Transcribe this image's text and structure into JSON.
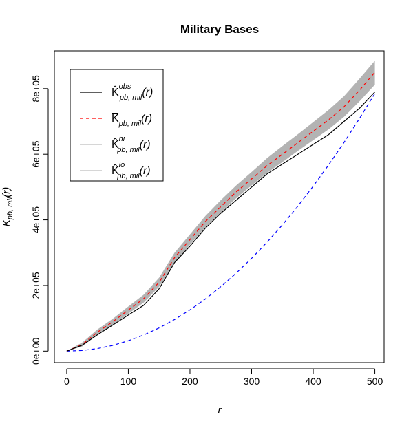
{
  "chart_data": {
    "type": "line",
    "title": "Military Bases",
    "xlabel": "r",
    "ylabel": "K_{pb, mil}(r)",
    "xlim": [
      -20,
      515
    ],
    "ylim": [
      -35000,
      915000
    ],
    "x_ticks": [
      0,
      100,
      200,
      300,
      400,
      500
    ],
    "x_tick_labels": [
      "0",
      "100",
      "200",
      "300",
      "400",
      "500"
    ],
    "y_ticks": [
      0,
      200000,
      400000,
      600000,
      800000
    ],
    "y_tick_labels": [
      "0e+00",
      "2e+05",
      "4e+05",
      "6e+05",
      "8e+05"
    ],
    "grid": false,
    "legend_position": "top-left",
    "legend": [
      {
        "symbol": "K̂",
        "sub": "pb, mil",
        "sup": "obs",
        "arg": "(r)",
        "color": "#000000",
        "dash": "solid"
      },
      {
        "symbol": "K̅",
        "sub": "pb, mil",
        "sup": "",
        "arg": "(r)",
        "color": "#ff0000",
        "dash": "dashed"
      },
      {
        "symbol": "K̂",
        "sub": "pb, mil",
        "sup": "hi",
        "arg": "(r)",
        "color": "#bebebe",
        "dash": "solid"
      },
      {
        "symbol": "K̂",
        "sub": "pb, mil",
        "sup": "lo",
        "arg": "(r)",
        "color": "#bebebe",
        "dash": "solid"
      }
    ],
    "x": [
      0,
      25,
      50,
      75,
      100,
      125,
      150,
      175,
      200,
      225,
      250,
      275,
      300,
      325,
      350,
      375,
      400,
      425,
      450,
      475,
      500
    ],
    "series": [
      {
        "key": "obs",
        "color": "#000000",
        "dash": "solid",
        "values": [
          0,
          18000,
          50000,
          80000,
          110000,
          140000,
          190000,
          270000,
          320000,
          375000,
          420000,
          460000,
          500000,
          540000,
          570000,
          600000,
          630000,
          660000,
          700000,
          740000,
          790000
        ]
      },
      {
        "key": "mean",
        "color": "#ff0000",
        "dash": "dashed",
        "values": [
          0,
          20000,
          58000,
          90000,
          125000,
          160000,
          210000,
          285000,
          340000,
          395000,
          440000,
          485000,
          525000,
          565000,
          600000,
          635000,
          670000,
          705000,
          745000,
          795000,
          850000
        ]
      },
      {
        "key": "theo",
        "color": "#0000ff",
        "dash": "dashed",
        "values": [
          0,
          1963,
          7854,
          17671,
          31416,
          49087,
          70686,
          96211,
          125664,
          159043,
          196350,
          237583,
          282743,
          331831,
          384845,
          441786,
          502655,
          567450,
          636173,
          708822,
          785398
        ]
      }
    ],
    "envelope": {
      "color": "#b3b3b3",
      "hi": [
        0,
        26000,
        66000,
        99000,
        136000,
        172000,
        224000,
        300000,
        356000,
        412000,
        460000,
        505000,
        546000,
        588000,
        625000,
        661000,
        698000,
        735000,
        777000,
        830000,
        885000
      ],
      "lo": [
        0,
        14000,
        50000,
        81000,
        114000,
        148000,
        196000,
        270000,
        324000,
        378000,
        422000,
        466000,
        505000,
        543000,
        576000,
        610000,
        643000,
        676000,
        714000,
        761000,
        812000
      ]
    }
  }
}
